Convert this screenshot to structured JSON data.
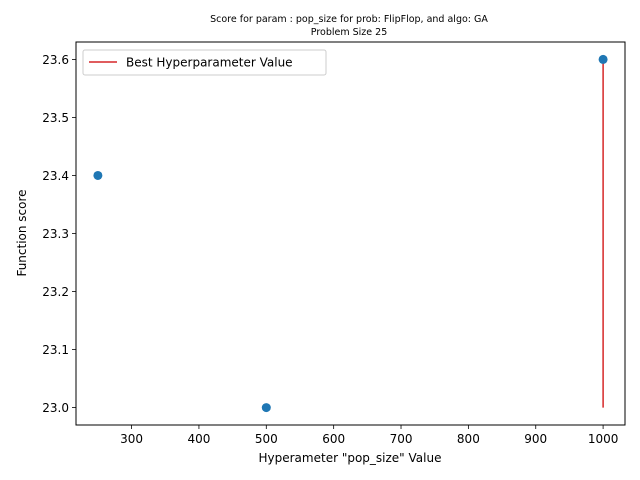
{
  "chart_data": {
    "type": "scatter",
    "title": "Score for param : pop_size for prob: FlipFlop, and algo: GA",
    "subtitle": "Problem Size 25",
    "xlabel": "Hyperameter \"pop_size\" Value",
    "ylabel": "Function score",
    "xlim": [
      217.5,
      1032.5
    ],
    "ylim": [
      22.97,
      23.63
    ],
    "xticks": [
      300,
      400,
      500,
      600,
      700,
      800,
      900,
      1000
    ],
    "yticks": [
      23.0,
      23.1,
      23.2,
      23.3,
      23.4,
      23.5,
      23.6
    ],
    "points": {
      "x": [
        250,
        500,
        1000
      ],
      "y": [
        23.4,
        23.0,
        23.6
      ],
      "color": "#1f77b4"
    },
    "best_line": {
      "name": "Best Hyperparameter Value",
      "x": 1000,
      "y_from": 23.0,
      "y_to": 23.6,
      "color": "#d62728"
    },
    "legend_position": "upper-left",
    "grid": false
  }
}
